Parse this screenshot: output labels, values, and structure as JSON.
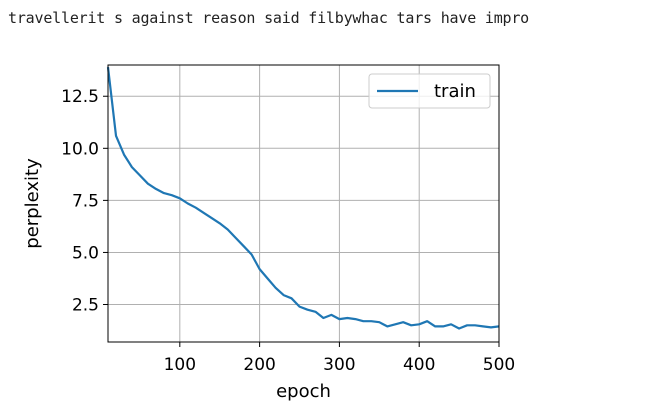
{
  "console": {
    "output": "travellerit s against reason said filbywhac tars have impro"
  },
  "chart_data": {
    "type": "line",
    "title": "",
    "xlabel": "epoch",
    "ylabel": "perplexity",
    "xlim": [
      10,
      500
    ],
    "ylim": [
      0.7,
      14.0
    ],
    "xticks": [
      100,
      200,
      300,
      400,
      500
    ],
    "yticks": [
      2.5,
      5.0,
      7.5,
      10.0,
      12.5
    ],
    "xtick_labels": [
      "100",
      "200",
      "300",
      "400",
      "500"
    ],
    "ytick_labels": [
      "2.5",
      "5.0",
      "7.5",
      "10.0",
      "12.5"
    ],
    "grid": true,
    "legend_position": "top-right",
    "series": [
      {
        "name": "train",
        "color": "#1f77b4",
        "x": [
          10,
          20,
          30,
          40,
          50,
          60,
          70,
          80,
          90,
          100,
          110,
          120,
          130,
          140,
          150,
          160,
          170,
          180,
          190,
          200,
          210,
          220,
          230,
          240,
          250,
          260,
          270,
          280,
          290,
          300,
          310,
          320,
          330,
          340,
          350,
          360,
          370,
          380,
          390,
          400,
          410,
          420,
          430,
          440,
          450,
          460,
          470,
          480,
          490,
          500
        ],
        "y": [
          13.9,
          10.6,
          9.7,
          9.1,
          8.7,
          8.3,
          8.05,
          7.85,
          7.75,
          7.6,
          7.35,
          7.15,
          6.9,
          6.65,
          6.4,
          6.1,
          5.7,
          5.3,
          4.9,
          4.2,
          3.75,
          3.3,
          2.95,
          2.8,
          2.4,
          2.25,
          2.15,
          1.85,
          2.0,
          1.8,
          1.85,
          1.8,
          1.7,
          1.7,
          1.65,
          1.45,
          1.55,
          1.65,
          1.5,
          1.55,
          1.7,
          1.45,
          1.45,
          1.55,
          1.35,
          1.5,
          1.5,
          1.45,
          1.4,
          1.45
        ]
      }
    ]
  }
}
